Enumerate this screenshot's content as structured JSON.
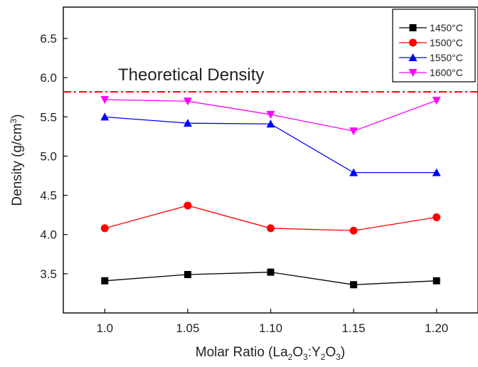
{
  "chart_data": {
    "type": "line",
    "title": "",
    "xlabel": {
      "prefix": "Molar Ratio (La",
      "sub1": "2",
      "mid1": "O",
      "sub2": "3",
      "mid2": ":Y",
      "sub3": "2",
      "mid3": "O",
      "sub4": "3",
      "suffix": ")"
    },
    "ylabel": {
      "prefix": "Density (g/cm",
      "sup": "3",
      "suffix": ")"
    },
    "categories": [
      "1.0",
      "1.05",
      "1.10",
      "1.15",
      "1.20"
    ],
    "xlim": [
      0.975,
      1.225
    ],
    "ylim": [
      3.0,
      6.9
    ],
    "yticks": [
      "3.5",
      "4.0",
      "4.5",
      "5.0",
      "5.5",
      "6.0",
      "6.5"
    ],
    "yticks_values": [
      3.5,
      4.0,
      4.5,
      5.0,
      5.5,
      6.0,
      6.5
    ],
    "series": [
      {
        "name": "1450°C",
        "color": "#000000",
        "marker": "square",
        "values": [
          3.41,
          3.49,
          3.52,
          3.36,
          3.41
        ]
      },
      {
        "name": "1500°C",
        "color": "#ff0000",
        "marker": "circle",
        "values": [
          4.08,
          4.37,
          4.08,
          4.05,
          4.22
        ]
      },
      {
        "name": "1550°C",
        "color": "#0000ff",
        "marker": "triangle-up",
        "values": [
          5.5,
          5.42,
          5.41,
          4.79,
          4.79
        ]
      },
      {
        "name": "1600°C",
        "color": "#ff00ff",
        "marker": "triangle-down",
        "values": [
          5.72,
          5.7,
          5.53,
          5.32,
          5.71
        ]
      }
    ],
    "reference_line": {
      "label": "Theoretical Density",
      "value": 5.82,
      "color": "#ff0000",
      "style": "dash-dot"
    },
    "legend_position": "top-right",
    "grid": false
  }
}
